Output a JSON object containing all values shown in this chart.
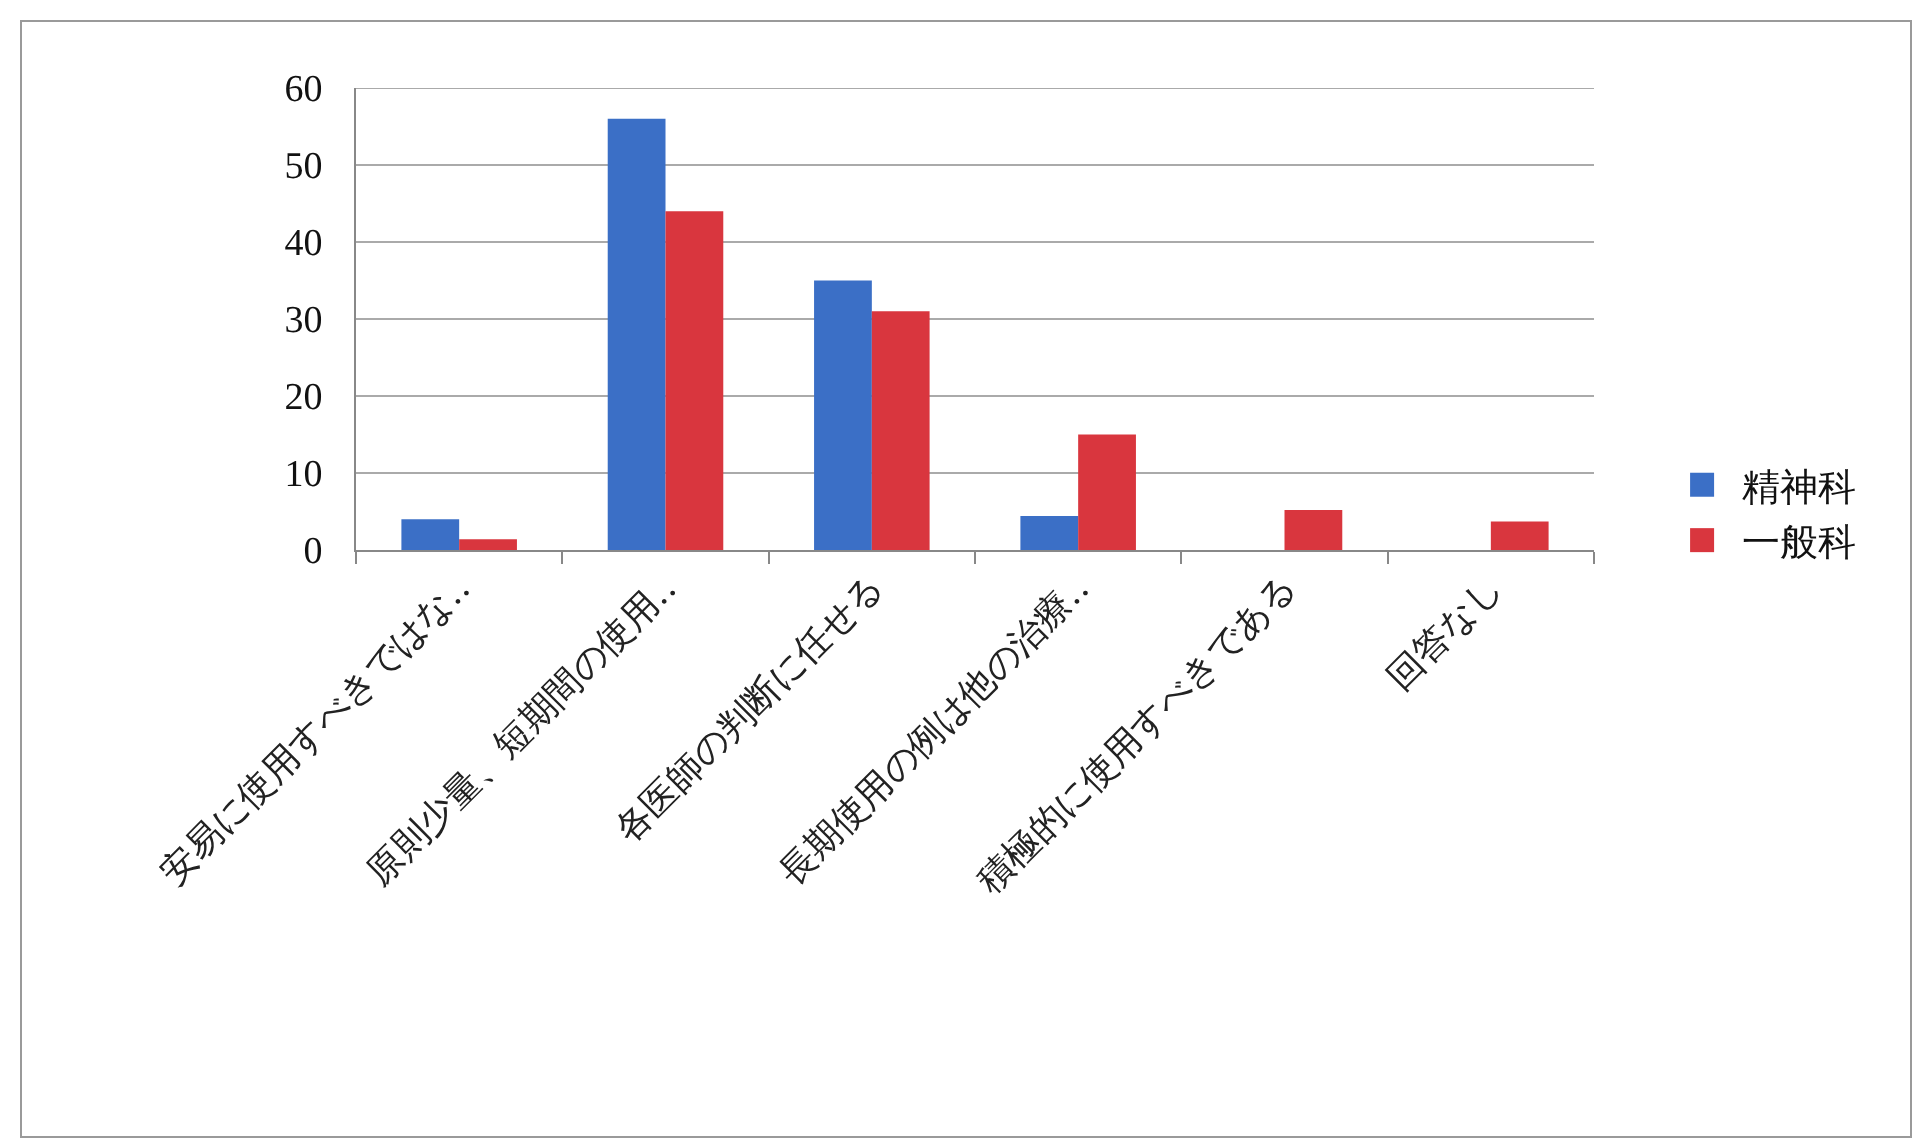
{
  "chart_data": {
    "type": "bar",
    "categories": [
      "安易に使用すべきではな‥",
      "原則少量、短期間の使用‥",
      "各医師の判断に任せる",
      "長期使用の例は他の治療‥",
      "積極的に使用すべきである",
      "回答なし"
    ],
    "series": [
      {
        "name": "精神科",
        "color": "#3b6fc6",
        "values": [
          4,
          56,
          35,
          4.4,
          0,
          0
        ]
      },
      {
        "name": "一般科",
        "color": "#d9363e",
        "values": [
          1.4,
          44,
          31,
          15,
          5.2,
          3.7
        ]
      }
    ],
    "ylim": [
      0,
      60
    ],
    "yticks": [
      0,
      10,
      20,
      30,
      40,
      50,
      60
    ],
    "grid": "y",
    "legend": "right"
  }
}
